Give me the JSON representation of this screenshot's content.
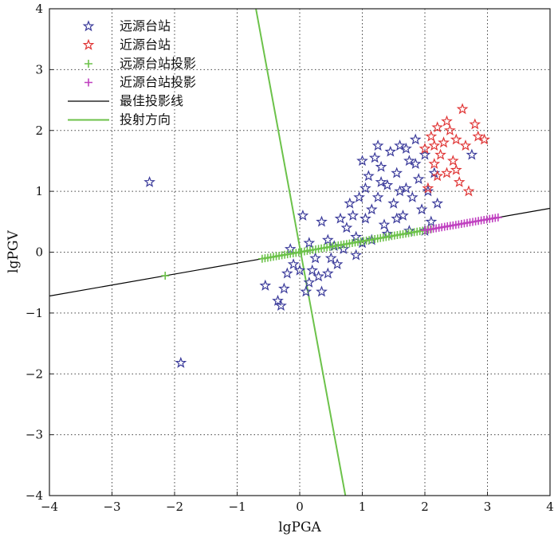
{
  "chart_data": {
    "type": "scatter",
    "xlabel": "lgPGA",
    "ylabel": "lgPGV",
    "xlim": [
      -4,
      4
    ],
    "ylim": [
      -4,
      4
    ],
    "xticks": [
      "-4",
      "-3",
      "-2",
      "-1",
      "0",
      "1",
      "2",
      "3",
      "4"
    ],
    "yticks": [
      "-4",
      "-3",
      "-2",
      "-1",
      "0",
      "1",
      "2",
      "3",
      "4"
    ],
    "grid": true,
    "legend_position": "top-left",
    "legend": [
      {
        "label": "远源台站",
        "marker": "star",
        "color": "#3a3a9a"
      },
      {
        "label": "近源台站",
        "marker": "star",
        "color": "#e03535"
      },
      {
        "label": "远源台站投影",
        "marker": "plus",
        "color": "#6cc24a"
      },
      {
        "label": "近源台站投影",
        "marker": "plus",
        "color": "#c040c0"
      },
      {
        "label": "最佳投影线",
        "marker": "line",
        "color": "#000000"
      },
      {
        "label": "投射方向",
        "marker": "line",
        "color": "#6cc24a"
      }
    ],
    "series": [
      {
        "name": "远源台站",
        "color": "#3a3a9a",
        "points": [
          [
            -2.4,
            1.15
          ],
          [
            -1.9,
            -1.82
          ],
          [
            -0.55,
            -0.55
          ],
          [
            -0.35,
            -0.8
          ],
          [
            -0.3,
            -0.88
          ],
          [
            -0.25,
            -0.6
          ],
          [
            -0.2,
            -0.35
          ],
          [
            -0.1,
            -0.2
          ],
          [
            0.0,
            -0.3
          ],
          [
            0.05,
            0.6
          ],
          [
            0.1,
            -0.65
          ],
          [
            0.15,
            -0.5
          ],
          [
            0.2,
            -0.3
          ],
          [
            0.3,
            -0.4
          ],
          [
            0.35,
            -0.65
          ],
          [
            0.45,
            -0.35
          ],
          [
            0.5,
            -0.1
          ],
          [
            0.6,
            -0.2
          ],
          [
            0.35,
            0.5
          ],
          [
            0.45,
            0.2
          ],
          [
            0.55,
            0.1
          ],
          [
            0.7,
            0.05
          ],
          [
            0.75,
            0.4
          ],
          [
            0.85,
            0.6
          ],
          [
            0.9,
            0.25
          ],
          [
            0.95,
            0.9
          ],
          [
            1.0,
            0.15
          ],
          [
            1.05,
            0.55
          ],
          [
            1.1,
            1.25
          ],
          [
            1.15,
            0.7
          ],
          [
            1.2,
            1.55
          ],
          [
            1.25,
            0.9
          ],
          [
            1.3,
            1.4
          ],
          [
            1.35,
            0.45
          ],
          [
            1.4,
            1.1
          ],
          [
            1.45,
            1.65
          ],
          [
            1.5,
            0.8
          ],
          [
            1.55,
            1.3
          ],
          [
            1.6,
            1.75
          ],
          [
            1.65,
            0.6
          ],
          [
            1.7,
            1.05
          ],
          [
            1.75,
            1.5
          ],
          [
            1.8,
            0.9
          ],
          [
            1.85,
            1.85
          ],
          [
            1.9,
            1.2
          ],
          [
            1.95,
            0.7
          ],
          [
            2.0,
            1.6
          ],
          [
            2.05,
            1.0
          ],
          [
            2.1,
            0.5
          ],
          [
            2.15,
            1.3
          ],
          [
            1.25,
            1.75
          ],
          [
            1.4,
            0.3
          ],
          [
            1.15,
            0.2
          ],
          [
            0.9,
            -0.05
          ],
          [
            0.8,
            0.8
          ],
          [
            0.65,
            0.55
          ],
          [
            1.55,
            0.55
          ],
          [
            1.75,
            0.35
          ],
          [
            2.0,
            0.35
          ],
          [
            1.6,
            1.0
          ],
          [
            1.3,
            1.15
          ],
          [
            1.05,
            1.05
          ],
          [
            1.85,
            1.45
          ],
          [
            2.2,
            0.8
          ],
          [
            2.75,
            1.6
          ],
          [
            0.25,
            -0.1
          ],
          [
            0.15,
            0.15
          ],
          [
            -0.15,
            0.05
          ],
          [
            1.0,
            1.5
          ],
          [
            1.7,
            1.7
          ]
        ]
      },
      {
        "name": "近源台站",
        "color": "#e03535",
        "points": [
          [
            2.0,
            1.7
          ],
          [
            2.1,
            1.9
          ],
          [
            2.15,
            1.45
          ],
          [
            2.2,
            2.05
          ],
          [
            2.25,
            1.6
          ],
          [
            2.3,
            1.8
          ],
          [
            2.35,
            1.3
          ],
          [
            2.4,
            2.0
          ],
          [
            2.45,
            1.5
          ],
          [
            2.5,
            1.85
          ],
          [
            2.55,
            1.15
          ],
          [
            2.6,
            2.35
          ],
          [
            2.65,
            1.75
          ],
          [
            2.7,
            1.0
          ],
          [
            2.8,
            2.1
          ],
          [
            2.85,
            1.9
          ],
          [
            2.95,
            1.85
          ],
          [
            2.2,
            1.25
          ],
          [
            2.05,
            1.05
          ],
          [
            2.35,
            2.15
          ],
          [
            2.15,
            1.75
          ],
          [
            2.5,
            1.35
          ]
        ]
      },
      {
        "name": "远源台站投影",
        "color": "#6cc24a",
        "from": -0.6,
        "to": 2.1,
        "extra": [
          -2.15
        ]
      },
      {
        "name": "近源台站投影",
        "color": "#c040c0",
        "from": 2.0,
        "to": 3.2
      },
      {
        "name": "最佳投影线",
        "color": "#000000",
        "slope": 0.18,
        "intercept": 0.0
      },
      {
        "name": "投射方向",
        "color": "#6cc24a",
        "x_at_y_top": -0.7,
        "x_at_y_bottom": 0.73
      }
    ]
  }
}
